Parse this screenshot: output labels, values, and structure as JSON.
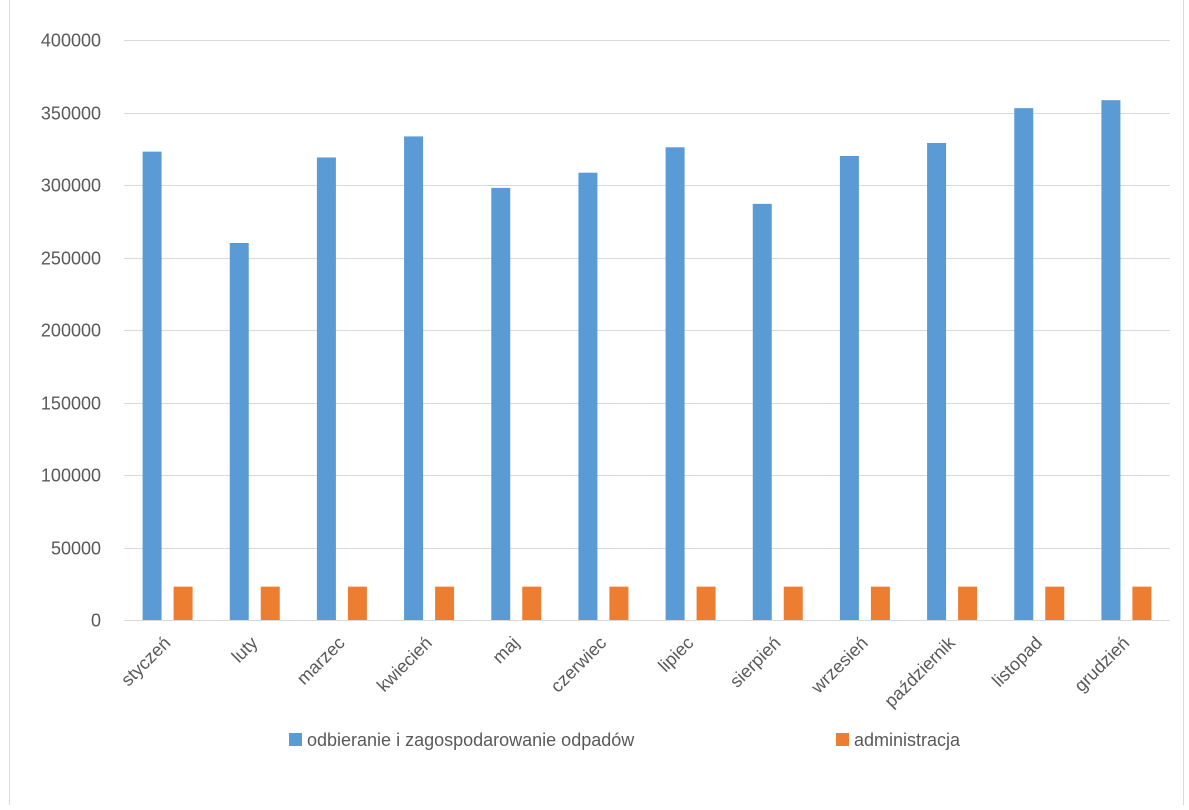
{
  "chart_data": {
    "type": "bar",
    "categories": [
      "styczeń",
      "luty",
      "marzec",
      "kwiecień",
      "maj",
      "czerwiec",
      "lipiec",
      "sierpień",
      "wrzesień",
      "październik",
      "listopad",
      "grudzień"
    ],
    "series": [
      {
        "name": "odbieranie i zagospodarowanie odpadów",
        "color": "#5b9bd5",
        "values": [
          323000,
          260000,
          319000,
          333500,
          298000,
          308500,
          326000,
          287000,
          320000,
          329000,
          353000,
          358500
        ]
      },
      {
        "name": "administracja",
        "color": "#ed7d31",
        "values": [
          23000,
          23000,
          23000,
          23000,
          23000,
          23000,
          23000,
          23000,
          23000,
          23000,
          23000,
          23000
        ]
      }
    ],
    "ylim": [
      0,
      400000
    ],
    "yticks": [
      "0",
      "50000",
      "100000",
      "150000",
      "200000",
      "250000",
      "300000",
      "350000",
      "400000"
    ],
    "grid": true,
    "legend_position": "bottom"
  }
}
